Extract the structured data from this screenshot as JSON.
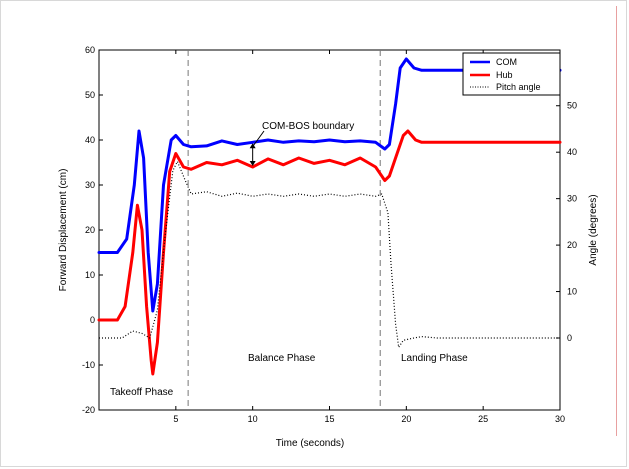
{
  "chart_data": {
    "type": "line",
    "xlabel": "Time (seconds)",
    "ylabel_left": "Forward Displacement (cm)",
    "ylabel_right": "Angle (degrees)",
    "xlim": [
      0,
      30
    ],
    "ylim_left": [
      -20,
      60
    ],
    "ylim_right": [
      -15.5,
      62
    ],
    "x_ticks": [
      5,
      10,
      15,
      20,
      25,
      30
    ],
    "y_ticks_left": [
      -20,
      -10,
      0,
      10,
      20,
      30,
      40,
      50,
      60
    ],
    "y_ticks_right": [
      0,
      10,
      20,
      30,
      40,
      50
    ],
    "grid": false,
    "legend": {
      "placement": "top-right",
      "entries": [
        {
          "label": "COM",
          "color": "#0000ff",
          "style": "solid"
        },
        {
          "label": "Hub",
          "color": "#ff0000",
          "style": "solid"
        },
        {
          "label": "Pitch angle",
          "color": "#000000",
          "style": "dotted"
        }
      ]
    },
    "phase_boundaries": [
      5.8,
      18.3
    ],
    "annotations": {
      "boundary_label": "COM-BOS boundary",
      "takeoff": "Takeoff Phase",
      "balance": "Balance Phase",
      "landing": "Landing Phase"
    },
    "series": [
      {
        "name": "COM",
        "axis": "left",
        "color": "#0000ff",
        "width": 3,
        "points": [
          [
            0,
            15
          ],
          [
            1.2,
            15
          ],
          [
            1.8,
            18
          ],
          [
            2.3,
            30
          ],
          [
            2.6,
            42
          ],
          [
            2.9,
            36
          ],
          [
            3.2,
            15
          ],
          [
            3.5,
            2
          ],
          [
            3.8,
            8
          ],
          [
            4.2,
            30
          ],
          [
            4.7,
            40
          ],
          [
            5.0,
            41
          ],
          [
            5.5,
            39
          ],
          [
            6.0,
            38.5
          ],
          [
            7,
            38.7
          ],
          [
            8,
            39.8
          ],
          [
            9,
            39
          ],
          [
            10,
            39.5
          ],
          [
            11,
            40
          ],
          [
            12,
            39.5
          ],
          [
            13,
            39.8
          ],
          [
            14,
            39.6
          ],
          [
            15,
            40
          ],
          [
            16,
            39.6
          ],
          [
            17,
            39.8
          ],
          [
            18,
            39.5
          ],
          [
            18.6,
            38
          ],
          [
            18.9,
            39
          ],
          [
            19.3,
            48
          ],
          [
            19.6,
            56
          ],
          [
            20,
            58
          ],
          [
            20.5,
            56
          ],
          [
            21,
            55.5
          ],
          [
            22,
            55.5
          ],
          [
            25,
            55.5
          ],
          [
            30,
            55.5
          ]
        ]
      },
      {
        "name": "Hub",
        "axis": "left",
        "color": "#ff0000",
        "width": 3,
        "points": [
          [
            0,
            0
          ],
          [
            1.2,
            0
          ],
          [
            1.7,
            3
          ],
          [
            2.2,
            15
          ],
          [
            2.5,
            25.5
          ],
          [
            2.8,
            20
          ],
          [
            3.1,
            3
          ],
          [
            3.4,
            -9
          ],
          [
            3.5,
            -12
          ],
          [
            3.8,
            -5
          ],
          [
            4.2,
            15
          ],
          [
            4.6,
            33
          ],
          [
            5.0,
            37
          ],
          [
            5.5,
            34
          ],
          [
            6.0,
            33.5
          ],
          [
            7,
            35
          ],
          [
            8,
            34.5
          ],
          [
            9,
            35.5
          ],
          [
            10,
            34
          ],
          [
            11,
            35.8
          ],
          [
            12,
            34.5
          ],
          [
            13,
            36
          ],
          [
            14,
            34.8
          ],
          [
            15,
            35.5
          ],
          [
            16,
            34.5
          ],
          [
            17,
            36
          ],
          [
            18,
            34
          ],
          [
            18.6,
            31
          ],
          [
            18.9,
            32
          ],
          [
            19.4,
            37
          ],
          [
            19.8,
            41
          ],
          [
            20.1,
            42
          ],
          [
            20.6,
            40
          ],
          [
            21,
            39.5
          ],
          [
            22,
            39.5
          ],
          [
            25,
            39.5
          ],
          [
            30,
            39.5
          ]
        ]
      },
      {
        "name": "Pitch angle",
        "axis": "right",
        "color": "#000000",
        "width": 1.2,
        "dotted": true,
        "points": [
          [
            0,
            0
          ],
          [
            1.5,
            0
          ],
          [
            2.2,
            1.5
          ],
          [
            2.8,
            1
          ],
          [
            3.3,
            0
          ],
          [
            3.8,
            6
          ],
          [
            4.3,
            22
          ],
          [
            4.8,
            36
          ],
          [
            5.1,
            38
          ],
          [
            5.6,
            34
          ],
          [
            6,
            31
          ],
          [
            7,
            31.5
          ],
          [
            8,
            30.5
          ],
          [
            9,
            31.2
          ],
          [
            10,
            30.5
          ],
          [
            11,
            31
          ],
          [
            12,
            30.5
          ],
          [
            13,
            31
          ],
          [
            14,
            30.5
          ],
          [
            15,
            31
          ],
          [
            16,
            30.5
          ],
          [
            17,
            31
          ],
          [
            18,
            30.5
          ],
          [
            18.4,
            31
          ],
          [
            18.8,
            27
          ],
          [
            19.0,
            16
          ],
          [
            19.3,
            3
          ],
          [
            19.5,
            -2
          ],
          [
            19.8,
            -0.5
          ],
          [
            20.5,
            0
          ],
          [
            21,
            0.3
          ],
          [
            22,
            0
          ],
          [
            25,
            0
          ],
          [
            30,
            0
          ]
        ]
      }
    ]
  }
}
